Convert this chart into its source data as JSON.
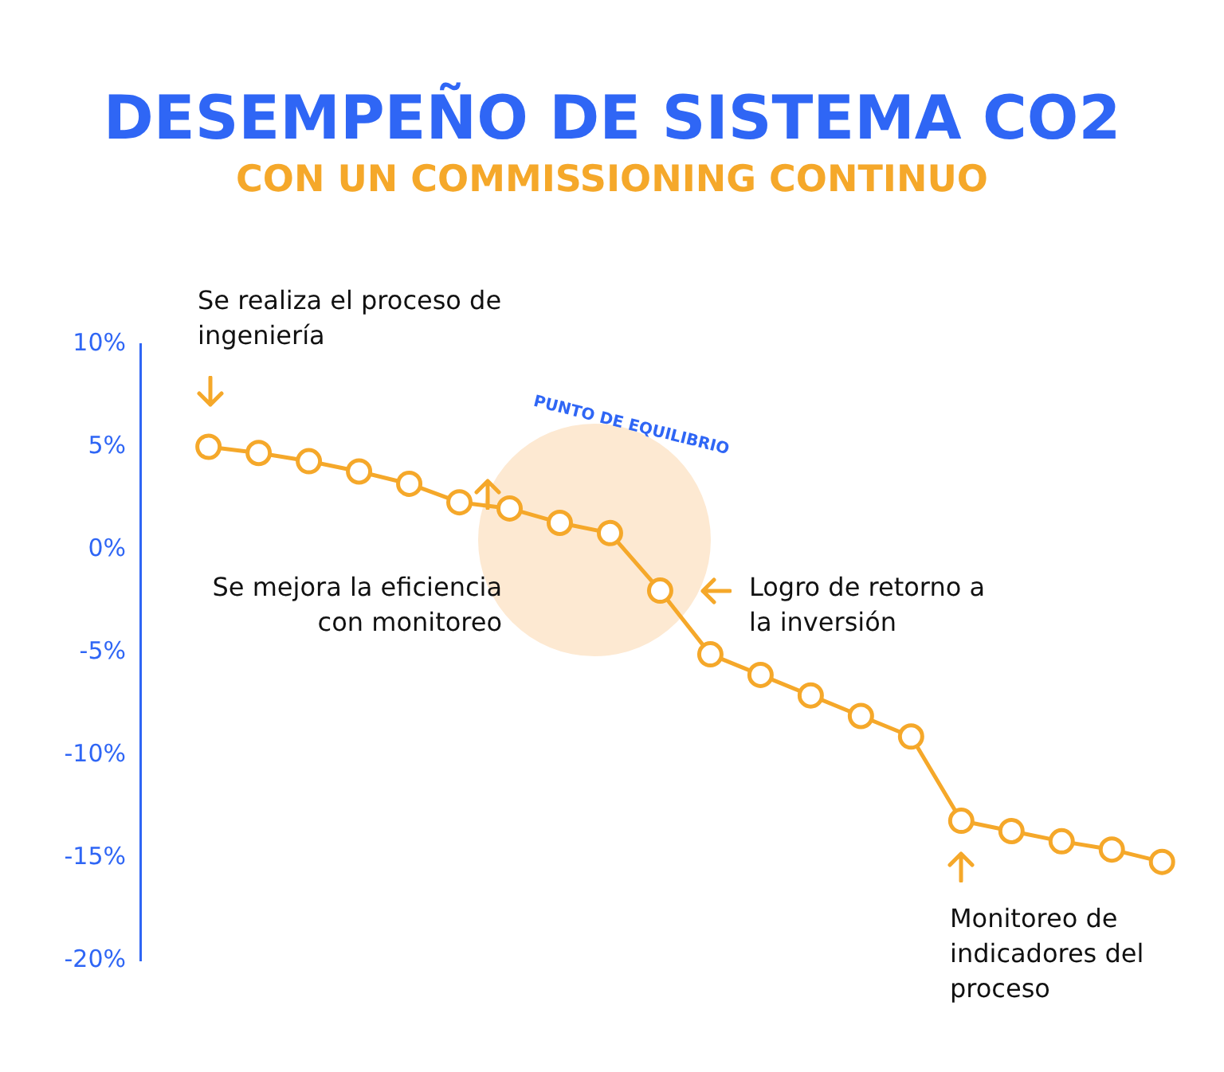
{
  "chart_data": {
    "type": "line",
    "title": "DESEMPEÑO DE SISTEMA CO2",
    "subtitle": "CON UN COMMISSIONING CONTINUO",
    "categories": [
      null,
      null,
      null,
      null,
      null,
      null,
      null,
      null,
      null,
      null,
      null,
      null,
      null,
      null,
      null,
      null,
      null,
      null,
      null,
      null
    ],
    "values": [
      5.0,
      4.7,
      4.3,
      3.8,
      3.2,
      2.3,
      2.0,
      1.3,
      0.8,
      -2.0,
      -5.1,
      -6.1,
      -7.1,
      -8.1,
      -9.1,
      -13.2,
      -13.7,
      -14.2,
      -14.6,
      -15.2
    ],
    "color": "#f5a82a",
    "marker": "circle",
    "line_style": "solid",
    "grid": false,
    "legend": false,
    "ylim": [
      -20,
      10
    ],
    "yticks": [
      {
        "value": -20,
        "label": "-20%"
      },
      {
        "value": -15,
        "label": "-15%"
      },
      {
        "value": -10,
        "label": "-10%"
      },
      {
        "value": -5,
        "label": "-5%"
      },
      {
        "value": 0,
        "label": "0%"
      },
      {
        "value": 5,
        "label": "5%"
      },
      {
        "value": 10,
        "label": "10%"
      }
    ],
    "annotations": [
      "Se realiza el proceso de ingeniería",
      "Se mejora la eficiencia con monitoreo",
      "PUNTO DE EQUILIBRIO",
      "Logro de retorno a la inversión",
      "Monitoreo de indicadores del proceso"
    ]
  }
}
